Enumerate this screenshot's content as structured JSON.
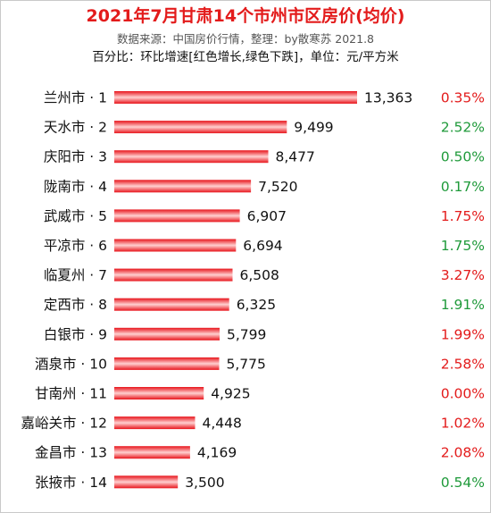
{
  "header": {
    "title": "2021年7月甘肃14个市州市区房价(均价)",
    "subtitle": "数据来源：中国房价行情，整理：by散寒苏  2021.8",
    "note": "百分比：环比增速[红色增长,绿色下跌]，单位：元/平方米"
  },
  "colors": {
    "bar": "#e8141b",
    "bar_light": "#ffd0d0",
    "up": "#e31b1b",
    "down": "#1f9a3a",
    "title": "#e31b1b"
  },
  "chart_data": {
    "type": "bar",
    "orientation": "horizontal",
    "title": "2021年7月甘肃14个市州市区房价(均价)",
    "categories": [
      "兰州市 · 1",
      "天水市 · 2",
      "庆阳市 · 3",
      "陇南市 · 4",
      "武威市 · 5",
      "平凉市 · 6",
      "临夏州 · 7",
      "定西市 · 8",
      "白银市 · 9",
      "酒泉市 · 10",
      "甘南州 · 11",
      "嘉峪关市 · 12",
      "金昌市 · 13",
      "张掖市 · 14"
    ],
    "values": [
      13363,
      9499,
      8477,
      7520,
      6907,
      6694,
      6508,
      6325,
      5799,
      5775,
      4925,
      4448,
      4169,
      3500
    ],
    "value_labels": [
      "13,363",
      "9,499",
      "8,477",
      "7,520",
      "6,907",
      "6,694",
      "6,508",
      "6,325",
      "5,799",
      "5,775",
      "4,925",
      "4,448",
      "4,169",
      "3,500"
    ],
    "mom_change": [
      "0.35%",
      "2.52%",
      "0.50%",
      "0.17%",
      "1.75%",
      "1.75%",
      "3.27%",
      "1.91%",
      "1.99%",
      "2.58%",
      "0.00%",
      "1.02%",
      "2.08%",
      "0.54%"
    ],
    "mom_direction": [
      "up",
      "down",
      "down",
      "down",
      "up",
      "down",
      "up",
      "down",
      "up",
      "up",
      "up",
      "up",
      "up",
      "down"
    ],
    "xlim": [
      0,
      13363
    ],
    "grid": false,
    "legend": "none"
  }
}
